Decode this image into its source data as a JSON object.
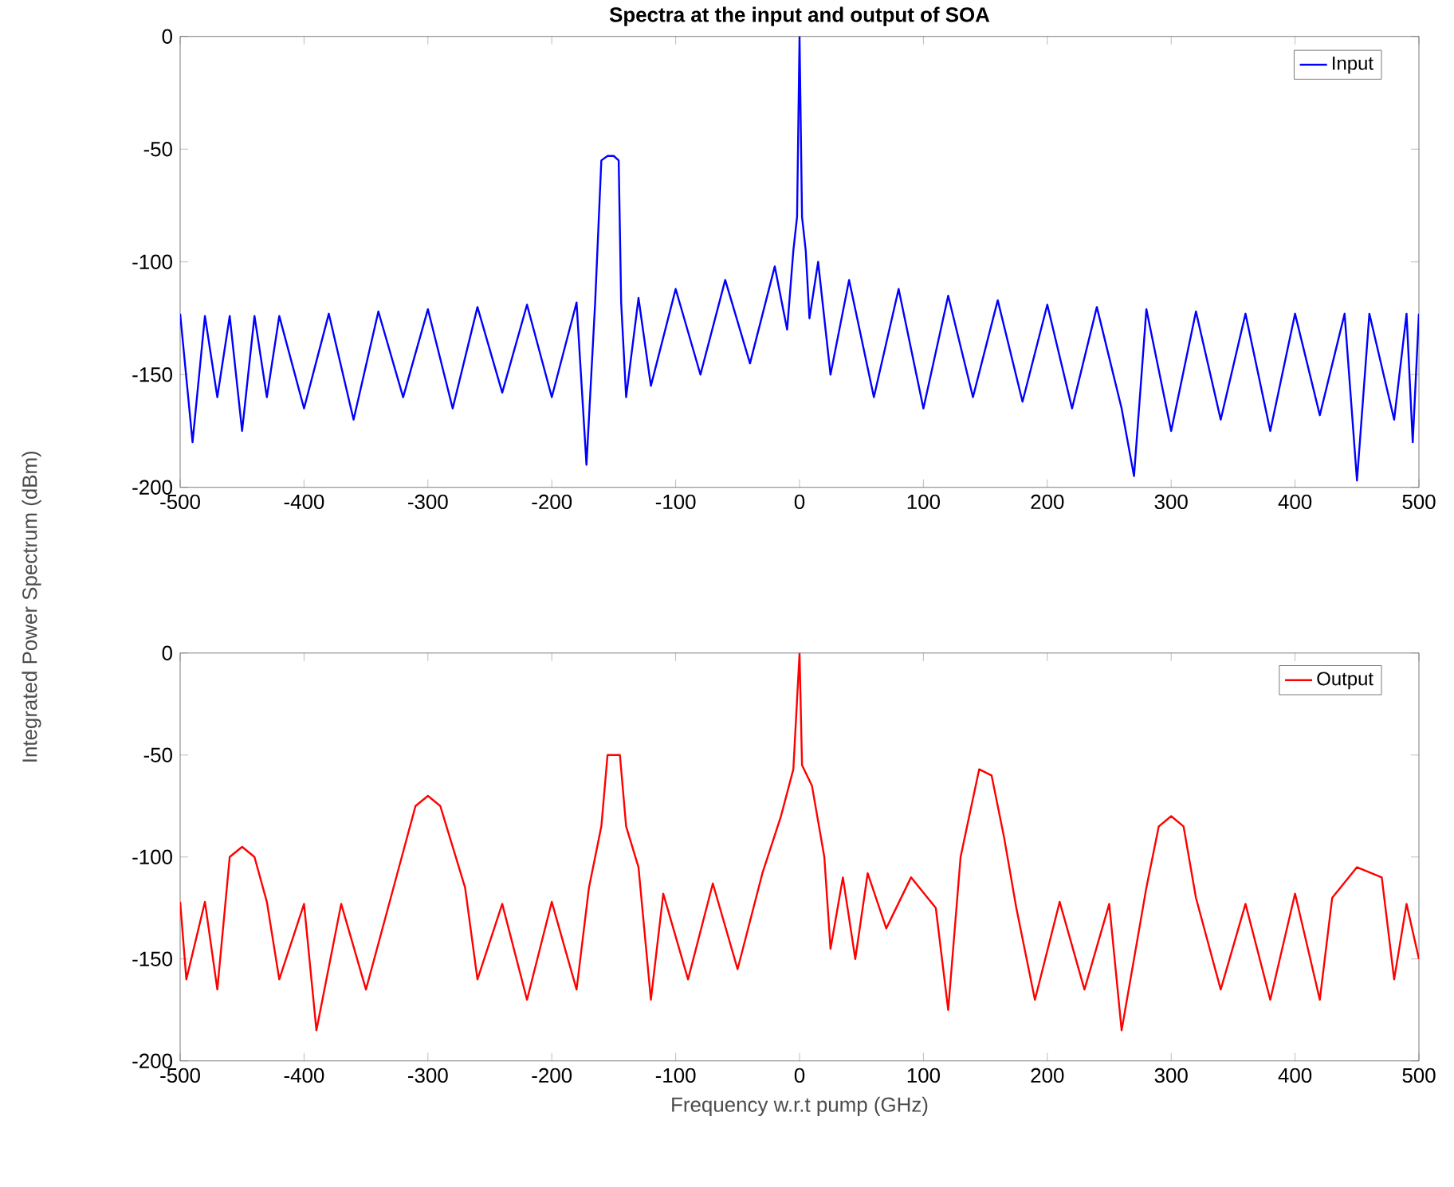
{
  "chart_data": [
    {
      "type": "line",
      "title": "Spectra at the input and output of SOA",
      "ylabel": "Integrated Power Spectrum (dBm)",
      "xlim": [
        -500,
        500
      ],
      "ylim": [
        -200,
        0
      ],
      "xticks": [
        -500,
        -400,
        -300,
        -200,
        -100,
        0,
        100,
        200,
        300,
        400,
        500
      ],
      "yticks": [
        -200,
        -150,
        -100,
        -50,
        0
      ],
      "legend": "top right",
      "series": [
        {
          "name": "Input",
          "color": "#0000ff",
          "x": [
            -500,
            -490,
            -480,
            -470,
            -460,
            -450,
            -440,
            -430,
            -420,
            -400,
            -380,
            -360,
            -340,
            -320,
            -300,
            -280,
            -260,
            -240,
            -220,
            -200,
            -180,
            -172,
            -165,
            -160,
            -155,
            -150,
            -146,
            -144,
            -140,
            -130,
            -120,
            -100,
            -80,
            -60,
            -40,
            -20,
            -10,
            -5,
            -2,
            0,
            2,
            5,
            8,
            15,
            25,
            40,
            60,
            80,
            100,
            120,
            140,
            160,
            180,
            200,
            220,
            240,
            260,
            270,
            280,
            300,
            320,
            340,
            360,
            380,
            400,
            420,
            440,
            450,
            460,
            480,
            490,
            495,
            500
          ],
          "values": [
            -123,
            -180,
            -124,
            -160,
            -124,
            -175,
            -124,
            -160,
            -124,
            -165,
            -123,
            -170,
            -122,
            -160,
            -121,
            -165,
            -120,
            -158,
            -119,
            -160,
            -118,
            -190,
            -118,
            -55,
            -53,
            -53,
            -55,
            -118,
            -160,
            -116,
            -155,
            -112,
            -150,
            -108,
            -145,
            -102,
            -130,
            -95,
            -80,
            0,
            -80,
            -95,
            -125,
            -100,
            -150,
            -108,
            -160,
            -112,
            -165,
            -115,
            -160,
            -117,
            -162,
            -119,
            -165,
            -120,
            -165,
            -195,
            -121,
            -175,
            -122,
            -170,
            -123,
            -175,
            -123,
            -168,
            -123,
            -197,
            -123,
            -170,
            -123,
            -180,
            -123
          ]
        }
      ]
    },
    {
      "type": "line",
      "xlabel": "Frequency w.r.t pump (GHz)",
      "xlim": [
        -500,
        500
      ],
      "ylim": [
        -200,
        0
      ],
      "xticks": [
        -500,
        -400,
        -300,
        -200,
        -100,
        0,
        100,
        200,
        300,
        400,
        500
      ],
      "yticks": [
        -200,
        -150,
        -100,
        -50,
        0
      ],
      "legend": "top right",
      "series": [
        {
          "name": "Output",
          "color": "#ff0000",
          "x": [
            -500,
            -495,
            -480,
            -470,
            -460,
            -450,
            -440,
            -430,
            -420,
            -400,
            -390,
            -370,
            -350,
            -330,
            -310,
            -300,
            -290,
            -270,
            -260,
            -240,
            -220,
            -200,
            -180,
            -170,
            -160,
            -155,
            -145,
            -140,
            -130,
            -120,
            -110,
            -90,
            -70,
            -50,
            -30,
            -15,
            -5,
            0,
            2,
            10,
            20,
            25,
            35,
            45,
            55,
            70,
            90,
            110,
            120,
            130,
            145,
            155,
            165,
            175,
            190,
            210,
            230,
            250,
            260,
            280,
            290,
            300,
            310,
            320,
            340,
            360,
            380,
            400,
            420,
            430,
            450,
            470,
            480,
            490,
            500
          ],
          "values": [
            -122,
            -160,
            -122,
            -165,
            -100,
            -95,
            -100,
            -122,
            -160,
            -123,
            -185,
            -123,
            -165,
            -120,
            -75,
            -70,
            -75,
            -115,
            -160,
            -123,
            -170,
            -122,
            -165,
            -115,
            -85,
            -50,
            -50,
            -85,
            -105,
            -170,
            -118,
            -160,
            -113,
            -155,
            -108,
            -80,
            -57,
            0,
            -55,
            -65,
            -100,
            -145,
            -110,
            -150,
            -108,
            -135,
            -110,
            -125,
            -175,
            -100,
            -57,
            -60,
            -90,
            -125,
            -170,
            -122,
            -165,
            -123,
            -185,
            -115,
            -85,
            -80,
            -85,
            -120,
            -165,
            -123,
            -170,
            -118,
            -170,
            -120,
            -105,
            -110,
            -160,
            -123,
            -150
          ]
        }
      ]
    }
  ]
}
